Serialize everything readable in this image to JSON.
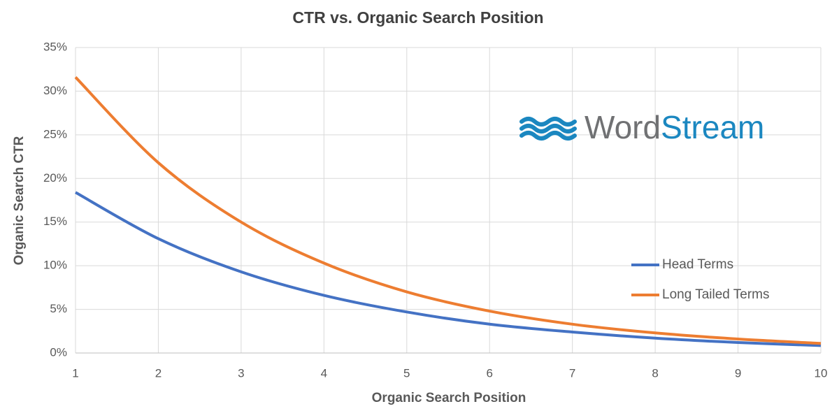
{
  "chart_data": {
    "type": "line",
    "title": "CTR vs. Organic Search Position",
    "x_label": "Organic Search Position",
    "y_label": "Organic Search CTR",
    "x": [
      1,
      2,
      3,
      4,
      5,
      6,
      7,
      8,
      9,
      10
    ],
    "series": [
      {
        "name": "Head Terms",
        "color": "#4472c4",
        "values": [
          18.4,
          13.1,
          9.3,
          6.6,
          4.7,
          3.3,
          2.4,
          1.7,
          1.2,
          0.85
        ]
      },
      {
        "name": "Long Tailed Terms",
        "color": "#ed7d31",
        "values": [
          31.6,
          21.8,
          15.0,
          10.3,
          7.0,
          4.8,
          3.3,
          2.3,
          1.6,
          1.1
        ]
      }
    ],
    "xlim": [
      1,
      10
    ],
    "xticks": [
      1,
      2,
      3,
      4,
      5,
      6,
      7,
      8,
      9,
      10
    ],
    "ylim": [
      0,
      35
    ],
    "yticks": [
      {
        "value": 0,
        "label": "0%"
      },
      {
        "value": 5,
        "label": "5%"
      },
      {
        "value": 10,
        "label": "10%"
      },
      {
        "value": 15,
        "label": "15%"
      },
      {
        "value": 20,
        "label": "20%"
      },
      {
        "value": 25,
        "label": "25%"
      },
      {
        "value": 30,
        "label": "30%"
      },
      {
        "value": 35,
        "label": "35%"
      }
    ],
    "grid": true,
    "legend": "right"
  },
  "logo_text": [
    "Word",
    "Stream"
  ]
}
